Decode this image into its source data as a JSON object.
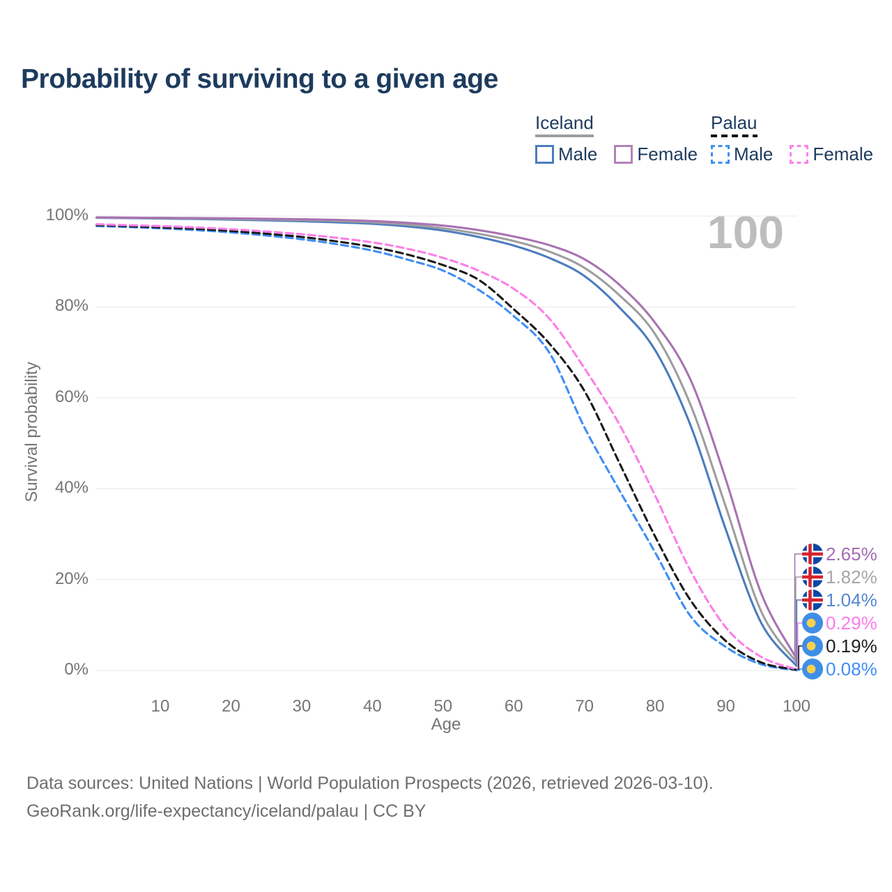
{
  "header": {
    "title": "Probability of surviving to a given age"
  },
  "legend": {
    "groups": [
      {
        "label": "Iceland",
        "line_style": "solid",
        "underline_color": "#9e9e9e",
        "items": [
          {
            "label": "Male",
            "color": "#4C7CBE"
          },
          {
            "label": "Female",
            "color": "#B283B8"
          }
        ]
      },
      {
        "label": "Palau",
        "line_style": "dashed",
        "underline_color": "#141414",
        "items": [
          {
            "label": "Male",
            "color": "#3F8EF5"
          },
          {
            "label": "Female",
            "color": "#FB80E8"
          }
        ]
      }
    ]
  },
  "chart_data": {
    "type": "line",
    "title": "Probability of surviving to a given age",
    "xlabel": "Age",
    "ylabel": "Survival probability",
    "xlim": [
      1,
      100
    ],
    "ylim": [
      0,
      100
    ],
    "grid": "horizontal",
    "legend_position": "top-right",
    "watermark": "100",
    "x_ticks": [
      {
        "value": 10,
        "label": "10"
      },
      {
        "value": 20,
        "label": "20"
      },
      {
        "value": 30,
        "label": "30"
      },
      {
        "value": 40,
        "label": "40"
      },
      {
        "value": 50,
        "label": "50"
      },
      {
        "value": 60,
        "label": "60"
      },
      {
        "value": 70,
        "label": "70"
      },
      {
        "value": 80,
        "label": "80"
      },
      {
        "value": 90,
        "label": "90"
      },
      {
        "value": 100,
        "label": "100"
      }
    ],
    "y_ticks": [
      {
        "value": 0,
        "label": "0%"
      },
      {
        "value": 20,
        "label": "20%"
      },
      {
        "value": 40,
        "label": "40%"
      },
      {
        "value": 60,
        "label": "60%"
      },
      {
        "value": 80,
        "label": "80%"
      },
      {
        "value": 100,
        "label": "100%"
      }
    ],
    "ages": [
      1,
      5,
      10,
      15,
      20,
      25,
      30,
      35,
      40,
      45,
      50,
      55,
      60,
      65,
      70,
      75,
      80,
      85,
      90,
      95,
      100
    ],
    "series": [
      {
        "id": "iceland-female",
        "country": "Iceland",
        "sex": "Female",
        "style": "solid",
        "color": "#A873B2",
        "flag": "iceland",
        "end_label": "2.65%",
        "end_label_color": "#A46CB1",
        "values": [
          99.7,
          99.65,
          99.6,
          99.55,
          99.5,
          99.4,
          99.3,
          99.15,
          98.9,
          98.5,
          97.9,
          96.9,
          95.5,
          93.6,
          90.5,
          84.8,
          76.5,
          64.0,
          42.0,
          17.0,
          2.65
        ]
      },
      {
        "id": "iceland-total",
        "country": "Iceland",
        "style": "solid",
        "color": "#9E9E9E",
        "flag": "iceland",
        "end_label": "1.82%",
        "end_label_color": "#A6A6A6",
        "values": [
          99.65,
          99.6,
          99.55,
          99.45,
          99.35,
          99.25,
          99.1,
          98.9,
          98.6,
          98.1,
          97.3,
          96.1,
          94.5,
          92.2,
          88.6,
          82.5,
          74.0,
          58.5,
          36.0,
          13.0,
          1.82
        ]
      },
      {
        "id": "iceland-male",
        "country": "Iceland",
        "sex": "Male",
        "style": "solid",
        "color": "#4C7CBE",
        "flag": "iceland",
        "end_label": "1.04%",
        "end_label_color": "#5587CE",
        "values": [
          99.6,
          99.55,
          99.45,
          99.35,
          99.2,
          99.05,
          98.85,
          98.6,
          98.3,
          97.7,
          96.8,
          95.4,
          93.5,
          90.8,
          86.8,
          79.8,
          70.5,
          54.0,
          31.0,
          10.5,
          1.04
        ]
      },
      {
        "id": "palau-female",
        "country": "Palau",
        "sex": "Female",
        "style": "dashed",
        "color": "#FB80E8",
        "flag": "palau",
        "end_label": "0.29%",
        "end_label_color": "#FB7CE8",
        "values": [
          98.2,
          98.0,
          97.8,
          97.5,
          97.1,
          96.6,
          96.0,
          95.2,
          94.2,
          92.8,
          90.8,
          88.0,
          84.0,
          77.5,
          66.5,
          54.0,
          38.5,
          22.0,
          9.5,
          3.0,
          0.29
        ]
      },
      {
        "id": "palau-total",
        "country": "Palau",
        "style": "dashed",
        "color": "#1A1A1A",
        "flag": "palau",
        "end_label": "0.19%",
        "end_label_color": "#1F1F1F",
        "values": [
          98.0,
          97.8,
          97.5,
          97.2,
          96.7,
          96.1,
          95.4,
          94.4,
          93.2,
          91.5,
          89.2,
          86.0,
          79.5,
          72.0,
          61.5,
          45.5,
          29.5,
          15.5,
          6.5,
          1.8,
          0.19
        ]
      },
      {
        "id": "palau-male",
        "country": "Palau",
        "sex": "Male",
        "style": "dashed",
        "color": "#3F8EF5",
        "flag": "palau",
        "end_label": "0.08%",
        "end_label_color": "#3F8EF5",
        "values": [
          97.8,
          97.6,
          97.3,
          96.9,
          96.4,
          95.7,
          94.9,
          93.8,
          92.4,
          90.4,
          88.0,
          83.8,
          78.0,
          70.0,
          53.5,
          39.5,
          26.0,
          12.0,
          5.2,
          1.4,
          0.08
        ]
      }
    ],
    "flag_colors": {
      "iceland_blue": "#0B47A5",
      "iceland_red": "#D5232E",
      "iceland_white": "#FFFFFF",
      "palau_blue": "#3E8EE8",
      "palau_yellow": "#F7D24E"
    }
  },
  "footer": {
    "line1": "Data sources: United Nations | World Population Prospects (2026, retrieved 2026-03-10).",
    "line2": "GeoRank.org/life-expectancy/iceland/palau | CC BY"
  }
}
